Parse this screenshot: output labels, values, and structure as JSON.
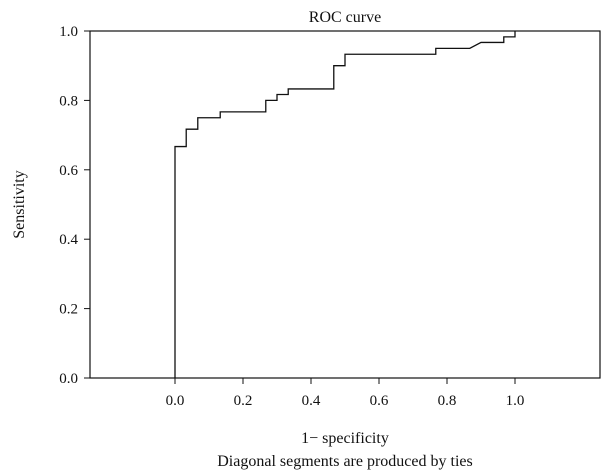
{
  "chart_data": {
    "type": "line",
    "title": "ROC curve",
    "xlabel": "1− specificity",
    "ylabel": "Sensitivity",
    "note": "Diagonal segments are produced by ties",
    "xlim": [
      -0.25,
      1.25
    ],
    "ylim": [
      0,
      1
    ],
    "xticks": [
      0.0,
      0.2,
      0.4,
      0.6,
      0.8,
      1.0
    ],
    "yticks": [
      0.0,
      0.2,
      0.4,
      0.6,
      0.8,
      1.0
    ],
    "xtick_labels": [
      "0.0",
      "0.2",
      "0.4",
      "0.6",
      "0.8",
      "1.0"
    ],
    "ytick_labels": [
      "0.0",
      "0.2",
      "0.4",
      "0.6",
      "0.8",
      "1.0"
    ],
    "grid": false,
    "series": [
      {
        "x": [
          0.0,
          0.0,
          0.033,
          0.033,
          0.067,
          0.067,
          0.133,
          0.133,
          0.267,
          0.267,
          0.3,
          0.3,
          0.333,
          0.333,
          0.467,
          0.467,
          0.5,
          0.5,
          0.767,
          0.767,
          0.867,
          0.9,
          0.9,
          0.967,
          0.967,
          1.0,
          1.0
        ],
        "y": [
          0.0,
          0.667,
          0.667,
          0.717,
          0.717,
          0.75,
          0.75,
          0.767,
          0.767,
          0.8,
          0.8,
          0.817,
          0.817,
          0.833,
          0.833,
          0.9,
          0.9,
          0.933,
          0.933,
          0.95,
          0.95,
          0.967,
          0.967,
          0.967,
          0.983,
          0.983,
          1.0
        ],
        "color": "#111111"
      }
    ]
  }
}
